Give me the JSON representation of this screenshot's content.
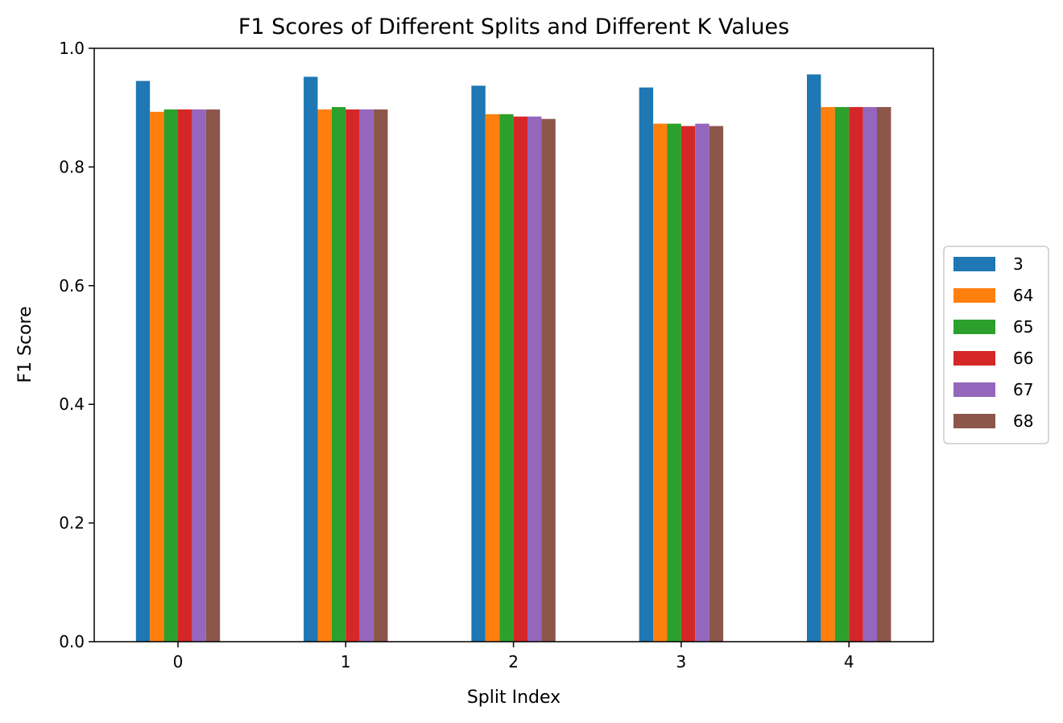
{
  "chart_data": {
    "type": "bar",
    "title": "F1 Scores of Different Splits and Different K Values",
    "xlabel": "Split Index",
    "ylabel": "F1 Score",
    "categories": [
      "0",
      "1",
      "2",
      "3",
      "4"
    ],
    "ylim": [
      0,
      1.0
    ],
    "yticks": [
      "0.0",
      "0.2",
      "0.4",
      "0.6",
      "0.8",
      "1.0"
    ],
    "grid": false,
    "legend_position": "center-right-outside",
    "series": [
      {
        "name": "3",
        "color": "#1f77b4",
        "values": [
          0.945,
          0.952,
          0.937,
          0.934,
          0.956
        ]
      },
      {
        "name": "64",
        "color": "#ff7f0e",
        "values": [
          0.893,
          0.897,
          0.889,
          0.873,
          0.901
        ]
      },
      {
        "name": "65",
        "color": "#2ca02c",
        "values": [
          0.897,
          0.901,
          0.889,
          0.873,
          0.901
        ]
      },
      {
        "name": "66",
        "color": "#d62728",
        "values": [
          0.897,
          0.897,
          0.885,
          0.869,
          0.901
        ]
      },
      {
        "name": "67",
        "color": "#9467bd",
        "values": [
          0.897,
          0.897,
          0.885,
          0.873,
          0.901
        ]
      },
      {
        "name": "68",
        "color": "#8c564b",
        "values": [
          0.897,
          0.897,
          0.881,
          0.869,
          0.901
        ]
      }
    ]
  }
}
